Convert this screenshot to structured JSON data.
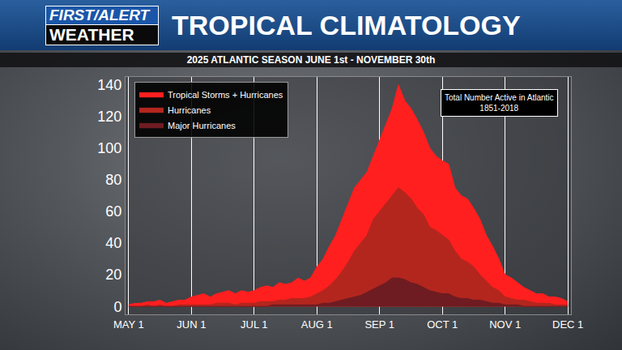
{
  "logo": {
    "line1": "FIRST/ALERT",
    "line2": "WEATHER"
  },
  "chart_data": {
    "type": "area",
    "title": "TROPICAL CLIMATOLOGY",
    "subtitle": "2025 ATLANTIC SEASON JUNE 1st - NOVEMBER 30th",
    "annotation": [
      "Total Number Active in Atlantic",
      "1851-2018"
    ],
    "categories": [
      "MAY 1",
      null,
      null,
      null,
      null,
      null,
      null,
      null,
      null,
      null,
      "JUN 1",
      null,
      null,
      null,
      null,
      null,
      null,
      null,
      null,
      null,
      "JUL 1",
      null,
      null,
      null,
      null,
      null,
      null,
      null,
      null,
      null,
      "AUG 1",
      null,
      null,
      null,
      null,
      null,
      null,
      null,
      null,
      null,
      "SEP 1",
      null,
      null,
      null,
      null,
      null,
      null,
      null,
      null,
      null,
      "OCT 1",
      null,
      null,
      null,
      null,
      null,
      null,
      null,
      null,
      null,
      "NOV 1",
      null,
      null,
      null,
      null,
      null,
      null,
      null,
      null,
      null,
      "DEC 1"
    ],
    "series": [
      {
        "name": "Tropical Storms + Hurricanes",
        "color": "#ff1f1f",
        "values": [
          1,
          2,
          2,
          3,
          3,
          4,
          2,
          3,
          4,
          4,
          6,
          7,
          8,
          6,
          8,
          9,
          10,
          8,
          10,
          9,
          10,
          12,
          13,
          12,
          15,
          14,
          15,
          18,
          16,
          18,
          25,
          30,
          38,
          45,
          55,
          65,
          75,
          80,
          85,
          95,
          105,
          115,
          125,
          140,
          130,
          125,
          118,
          110,
          100,
          95,
          92,
          90,
          75,
          70,
          68,
          62,
          55,
          45,
          38,
          30,
          20,
          18,
          15,
          12,
          10,
          8,
          8,
          6,
          6,
          5,
          3
        ]
      },
      {
        "name": "Hurricanes",
        "color": "#b3261e",
        "values": [
          0,
          0,
          0,
          1,
          0,
          1,
          0,
          0,
          1,
          1,
          1,
          1,
          1,
          1,
          2,
          2,
          2,
          1,
          2,
          2,
          2,
          3,
          3,
          3,
          4,
          4,
          5,
          5,
          5,
          6,
          8,
          10,
          13,
          17,
          22,
          28,
          35,
          40,
          45,
          55,
          60,
          65,
          70,
          75,
          72,
          68,
          62,
          58,
          50,
          48,
          45,
          42,
          35,
          30,
          28,
          25,
          20,
          16,
          12,
          10,
          6,
          5,
          4,
          4,
          3,
          2,
          2,
          2,
          1,
          1,
          1
        ]
      },
      {
        "name": "Major Hurricanes",
        "color": "#6e1c22",
        "values": [
          0,
          0,
          0,
          0,
          0,
          0,
          0,
          0,
          0,
          0,
          0,
          0,
          0,
          0,
          0,
          0,
          0,
          0,
          0,
          0,
          0,
          0,
          0,
          1,
          1,
          1,
          1,
          1,
          1,
          1,
          1,
          2,
          2,
          3,
          4,
          5,
          6,
          7,
          9,
          11,
          13,
          15,
          18,
          18,
          17,
          15,
          14,
          12,
          10,
          9,
          8,
          8,
          6,
          5,
          5,
          4,
          4,
          3,
          2,
          2,
          1,
          1,
          1,
          0,
          0,
          0,
          0,
          0,
          0,
          0,
          0
        ]
      }
    ],
    "ylim": [
      -5,
      145
    ],
    "yticks": [
      0,
      20,
      40,
      60,
      80,
      100,
      120,
      140
    ],
    "grid": true,
    "legend": "upper left",
    "stacked": false
  }
}
